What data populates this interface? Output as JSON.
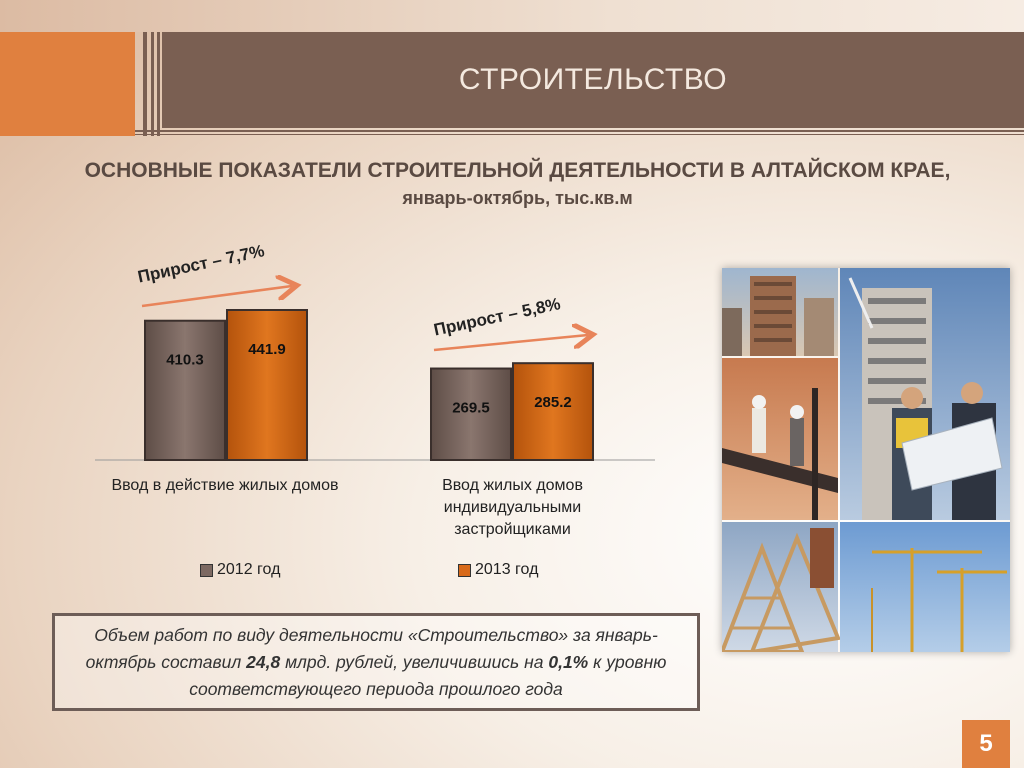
{
  "slide": {
    "title": "СТРОИТЕЛЬСТВО",
    "subtitle_line1": "ОСНОВНЫЕ ПОКАЗАТЕЛИ СТРОИТЕЛЬНОЙ ДЕЯТЕЛЬНОСТИ В АЛТАЙСКОМ КРАЕ,",
    "subtitle_line2": "январь-октябрь, тыс.кв.м",
    "page_number": "5"
  },
  "chart_data": {
    "type": "bar",
    "title": "",
    "categories": [
      [
        "Ввод в действие жилых домов"
      ],
      [
        "Ввод жилых домов",
        "индивидуальными",
        "застройщиками"
      ]
    ],
    "series": [
      {
        "name": "2012 год",
        "values": [
          410.3,
          441.9
        ],
        "color": "#7d6962"
      },
      {
        "name": "2013 год",
        "values": [
          269.5,
          285.2
        ],
        "color": "#d86a1a"
      }
    ],
    "data_labels": [
      "410.3",
      "441.9",
      "269.5",
      "285.2"
    ],
    "growth_labels": [
      "Прирост – 7,7%",
      "Прирост – 5,8%"
    ],
    "growth_arrow_color": "#e8845a",
    "ylim": [
      0,
      500
    ],
    "grid": false,
    "legend_position": "bottom"
  },
  "info_box": {
    "part1": "Объем работ по виду деятельности «Строительство» за январь-октябрь составил ",
    "value1": "24,8",
    "part2": " млрд. рублей, увеличившись на ",
    "value2": "0,1%",
    "part3": " к уровню соответствующего периода прошлого года"
  },
  "photos": {
    "alt": [
      "construction-building-photo",
      "engineers-with-plans-photo",
      "workers-on-beam-photo",
      "roof-frame-photo",
      "cranes-photo"
    ]
  },
  "colors": {
    "title_bar": "#7a5f52",
    "accent_orange": "#e0803f"
  }
}
